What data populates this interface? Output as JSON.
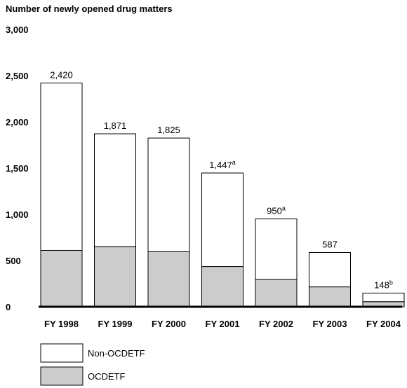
{
  "chart_data": {
    "type": "bar",
    "stacked": true,
    "title": "Number of newly opened drug matters",
    "xlabel": "",
    "ylabel": "",
    "ylim": [
      0,
      3000
    ],
    "yticks": [
      0,
      500,
      1000,
      1500,
      2000,
      2500,
      3000
    ],
    "ytick_labels": [
      "0",
      "500",
      "1,000",
      "1,500",
      "2,000",
      "2,500",
      "3,000"
    ],
    "categories": [
      "FY 1998",
      "FY 1999",
      "FY 2000",
      "FY 2001",
      "FY 2002",
      "FY 2003",
      "FY 2004"
    ],
    "totals": [
      2420,
      1871,
      1825,
      1447,
      950,
      587,
      148
    ],
    "total_labels": [
      "2,420",
      "1,871",
      "1,825",
      "1,447",
      "950",
      "587",
      "148"
    ],
    "total_label_notes": [
      "",
      "",
      "",
      "a",
      "a",
      "",
      "b"
    ],
    "series": [
      {
        "name": "OCDETF",
        "color": "#cccccc",
        "values": [
          610,
          650,
          595,
          435,
          295,
          215,
          55
        ]
      },
      {
        "name": "Non-OCDETF",
        "color": "#ffffff",
        "values": [
          1810,
          1221,
          1230,
          1012,
          655,
          372,
          93
        ]
      }
    ],
    "legend": [
      {
        "label": "Non-OCDETF",
        "color": "#ffffff"
      },
      {
        "label": "OCDETF",
        "color": "#cccccc"
      }
    ],
    "legend_position": "bottom-left",
    "grid": false
  }
}
